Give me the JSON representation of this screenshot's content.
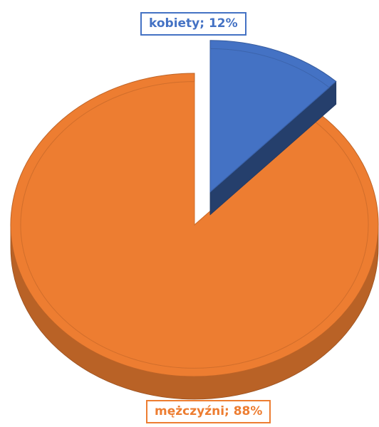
{
  "chart_data": {
    "type": "pie",
    "style": "3d-exploded",
    "slices": [
      {
        "label": "kobiety",
        "value": 12,
        "display": "kobiety; 12%",
        "color": "#4472C4",
        "exploded": true
      },
      {
        "label": "mężczyźni",
        "value": 88,
        "display": "mężczyźni; 88%",
        "color": "#ED7D31",
        "exploded": false
      }
    ],
    "legend": "none",
    "data_labels": "category; percent"
  }
}
